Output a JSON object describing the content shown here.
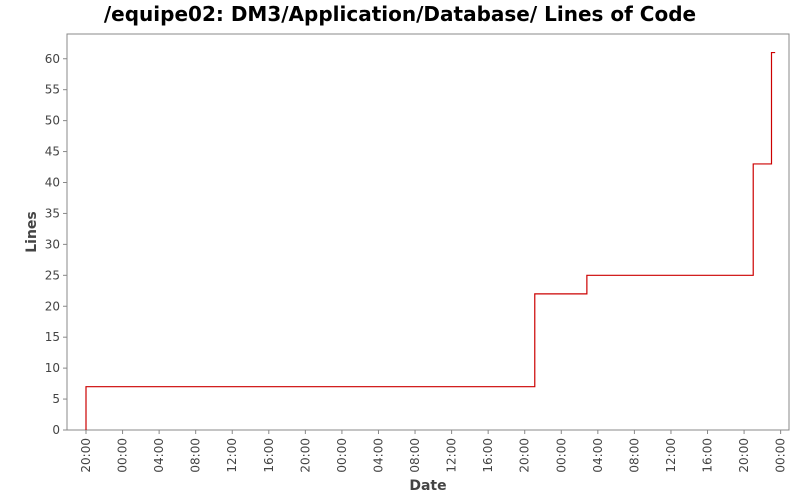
{
  "chart_data": {
    "type": "line",
    "title": "/equipe02: DM3/Application/Database/ Lines of Code",
    "xlabel": "Date",
    "ylabel": "Lines",
    "ylim": [
      0,
      64
    ],
    "yticks": [
      0,
      5,
      10,
      15,
      20,
      25,
      30,
      35,
      40,
      45,
      50,
      55,
      60
    ],
    "xticks": [
      "20:00",
      "00:00",
      "04:00",
      "08:00",
      "12:00",
      "16:00",
      "20:00",
      "00:00",
      "04:00",
      "08:00",
      "12:00",
      "16:00",
      "20:00",
      "00:00",
      "04:00",
      "08:00",
      "12:00",
      "16:00",
      "20:00",
      "00:00"
    ],
    "series": [
      {
        "color": "#cc0000",
        "step": true,
        "points": [
          {
            "t": 0.0,
            "y": 0
          },
          {
            "t": 0.0,
            "y": 7
          },
          {
            "t": 49.1,
            "y": 22
          },
          {
            "t": 54.8,
            "y": 25
          },
          {
            "t": 73.0,
            "y": 43
          },
          {
            "t": 75.0,
            "y": 61
          },
          {
            "t": 75.4,
            "y": 61
          }
        ]
      }
    ],
    "grid": false,
    "legend": "none"
  }
}
